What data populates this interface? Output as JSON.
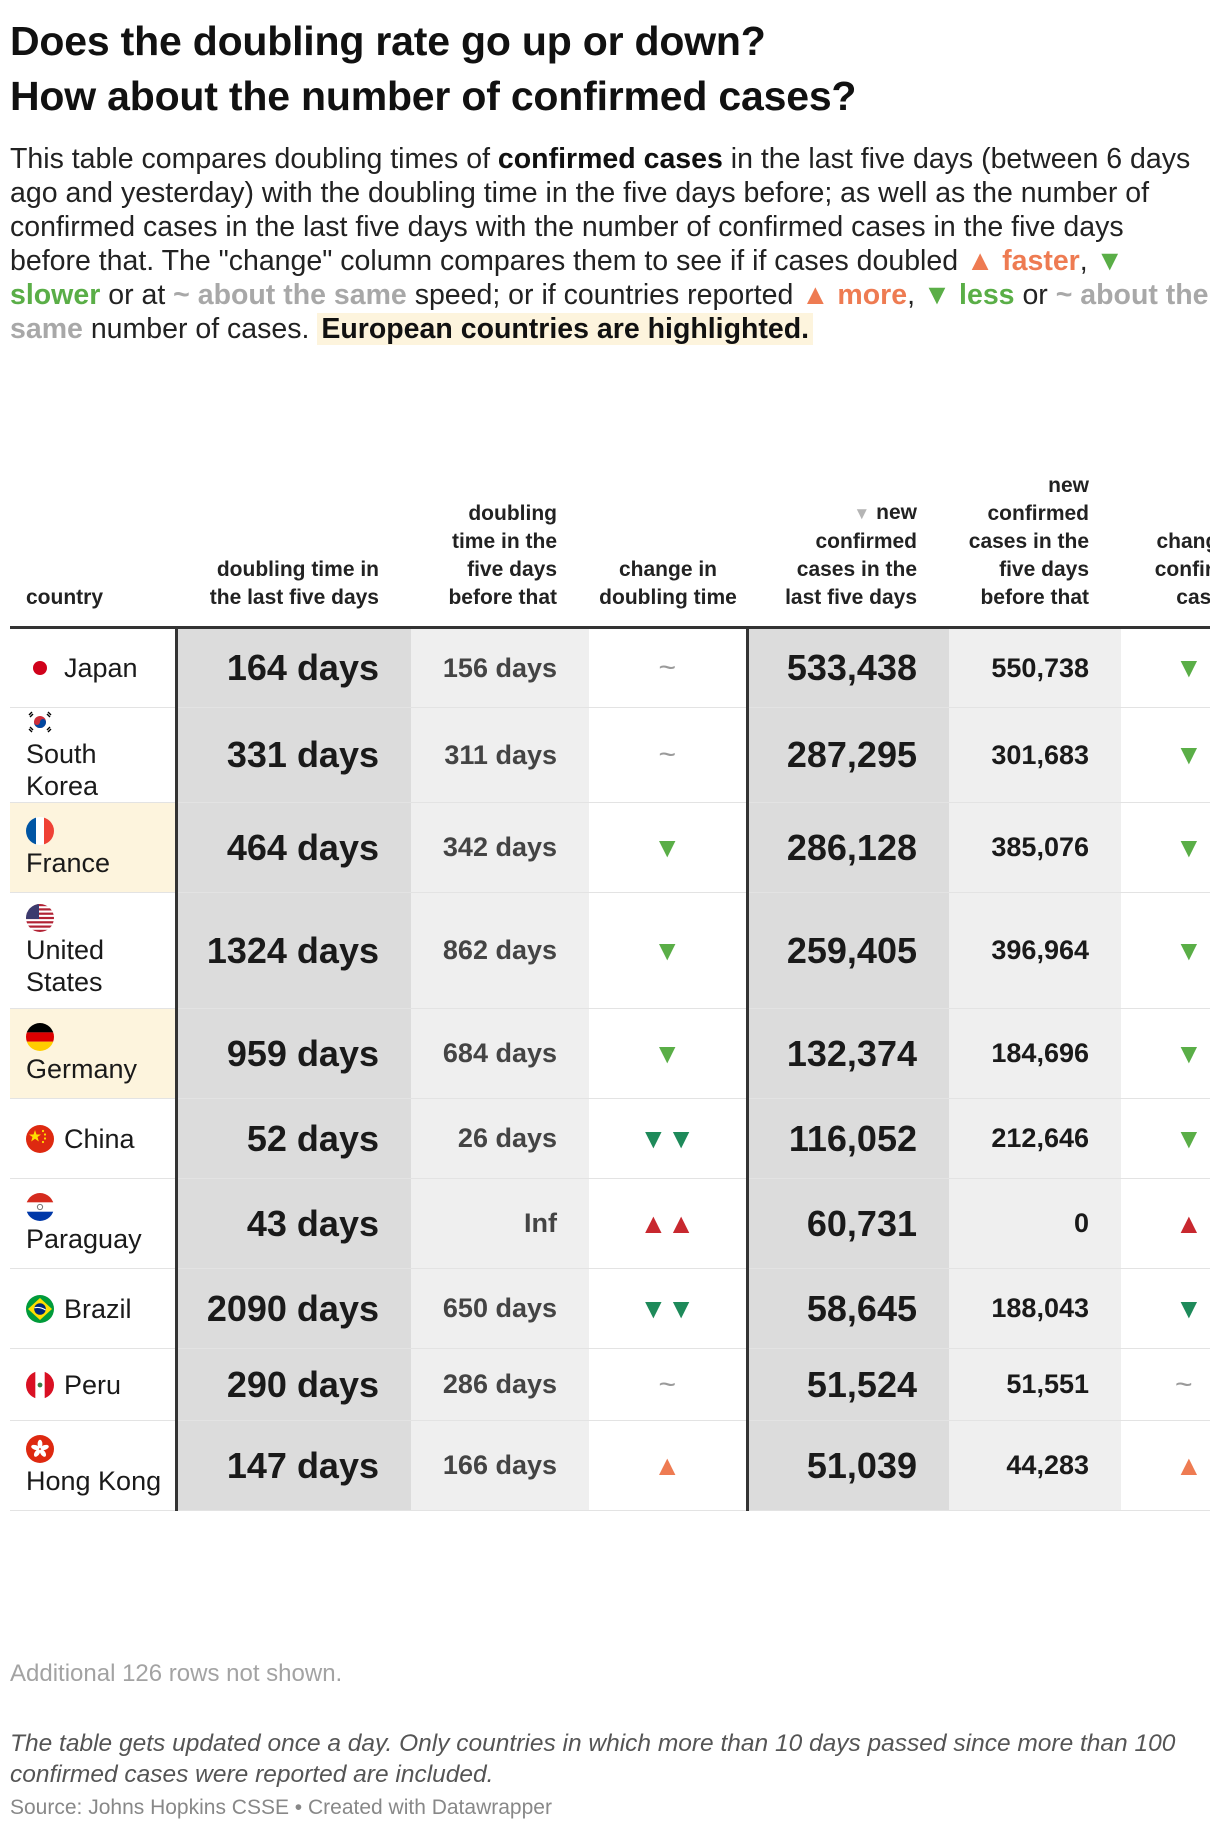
{
  "title_line1": "Does the doubling rate go up or down?",
  "title_line2": "How about the number of confirmed cases?",
  "intro": {
    "p1": "This table compares doubling times of ",
    "b1": "confirmed cases",
    "p2": " in the last five days (between 6 days ago and yesterday) with the doubling time in the five days before; as well as the number of confirmed cases in the last five days with the number of confirmed cases in the five days before that. The \"change\" column compares them to see if if cases doubled ",
    "faster": "▲ faster",
    "p3": ", ",
    "slower": "▼ slower",
    "p4": " or at ",
    "same1": "~ about the same",
    "p5": " speed; or if countries reported ",
    "more": "▲ more",
    "p6": ", ",
    "less": "▼ less",
    "p7": " or ",
    "same2": "~ about the same",
    "p8": " number of cases. ",
    "highlight": "European countries are highlighted."
  },
  "headers": {
    "country": "country",
    "dt": "doubling time in the last five days",
    "dtb": "doubling time in the five days before that",
    "chg": "change in doubling time",
    "new_arrow": "▼",
    "new": "new confirmed cases in the last five days",
    "newb": "new confirmed cases in the five days before that",
    "chg2": "change in confirmed cases"
  },
  "rows": [
    {
      "country": "Japan",
      "flag": "japan",
      "europe": false,
      "dt": "164 days",
      "dtb": "156 days",
      "chg": "~",
      "chg_style": "tilde",
      "new": "533,438",
      "newb": "550,738",
      "chg2": "▼",
      "chg2_style": "tri-down-green"
    },
    {
      "country": "South Korea",
      "flag": "korea",
      "europe": false,
      "dt": "331 days",
      "dtb": "311 days",
      "chg": "~",
      "chg_style": "tilde",
      "new": "287,295",
      "newb": "301,683",
      "chg2": "▼",
      "chg2_style": "tri-down-green"
    },
    {
      "country": "France",
      "flag": "france",
      "europe": true,
      "dt": "464 days",
      "dtb": "342 days",
      "chg": "▼",
      "chg_style": "tri-down-green",
      "new": "286,128",
      "newb": "385,076",
      "chg2": "▼",
      "chg2_style": "tri-down-green"
    },
    {
      "country": "United States",
      "flag": "usa",
      "europe": false,
      "dt": "1324 days",
      "dtb": "862 days",
      "chg": "▼",
      "chg_style": "tri-down-green",
      "new": "259,405",
      "newb": "396,964",
      "chg2": "▼",
      "chg2_style": "tri-down-green"
    },
    {
      "country": "Germany",
      "flag": "germany",
      "europe": true,
      "dt": "959 days",
      "dtb": "684 days",
      "chg": "▼",
      "chg_style": "tri-down-green",
      "new": "132,374",
      "newb": "184,696",
      "chg2": "▼",
      "chg2_style": "tri-down-green"
    },
    {
      "country": "China",
      "flag": "china",
      "europe": false,
      "dt": "52 days",
      "dtb": "26 days",
      "chg": "▼▼",
      "chg_style": "tri-down-dark",
      "new": "116,052",
      "newb": "212,646",
      "chg2": "▼",
      "chg2_style": "tri-down-green"
    },
    {
      "country": "Paraguay",
      "flag": "paraguay",
      "europe": false,
      "dt": "43 days",
      "dtb": "Inf",
      "chg": "▲▲",
      "chg_style": "tri-up-red",
      "new": "60,731",
      "newb": "0",
      "chg2": "▲",
      "chg2_style": "tri-up-red"
    },
    {
      "country": "Brazil",
      "flag": "brazil",
      "europe": false,
      "dt": "2090 days",
      "dtb": "650 days",
      "chg": "▼▼",
      "chg_style": "tri-down-dark",
      "new": "58,645",
      "newb": "188,043",
      "chg2": "▼",
      "chg2_style": "tri-down-dark"
    },
    {
      "country": "Peru",
      "flag": "peru",
      "europe": false,
      "dt": "290 days",
      "dtb": "286 days",
      "chg": "~",
      "chg_style": "tilde",
      "new": "51,524",
      "newb": "51,551",
      "chg2": "~",
      "chg2_style": "tilde"
    },
    {
      "country": "Hong Kong",
      "flag": "hongkong",
      "europe": false,
      "dt": "147 days",
      "dtb": "166 days",
      "chg": "▲",
      "chg_style": "tri-up-orange",
      "new": "51,039",
      "newb": "44,283",
      "chg2": "▲",
      "chg2_style": "tri-up-orange"
    }
  ],
  "more_rows": "Additional 126 rows not shown.",
  "note": "The table gets updated once a day. Only countries in which more than 10 days passed since more than 100 confirmed cases were reported are included.",
  "source": "Source: Johns Hopkins CSSE • Created with Datawrapper",
  "colors": {
    "faster_more": "#ee7b52",
    "slower_less": "#5aae47",
    "same": "#a8a8a8",
    "strong_down": "#1e8a5a",
    "strong_up": "#c8282f",
    "europe_highlight": "#fdf4dd"
  }
}
